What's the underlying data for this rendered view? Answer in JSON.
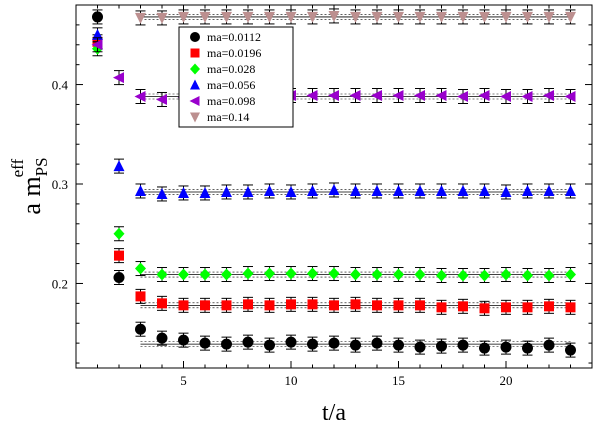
{
  "chart_data": {
    "type": "scatter",
    "title": "",
    "xlabel": "t/a",
    "ylabel": {
      "main": "a m",
      "sub": "PS",
      "sup": "eff"
    },
    "xlim": [
      0,
      24
    ],
    "ylim": [
      0.115,
      0.48
    ],
    "xticks": [
      5,
      10,
      15,
      20
    ],
    "yticks": [
      0.2,
      0.3,
      0.4
    ],
    "grid": false,
    "legend_position": "top-center",
    "series": [
      {
        "name": "ma=0.0112",
        "color": "#000000",
        "marker": "circle",
        "points": [
          [
            1,
            0.468
          ],
          [
            2,
            0.206
          ],
          [
            3,
            0.154
          ],
          [
            4,
            0.145
          ],
          [
            5,
            0.143
          ],
          [
            6,
            0.14
          ],
          [
            7,
            0.139
          ],
          [
            8,
            0.141
          ],
          [
            9,
            0.138
          ],
          [
            10,
            0.141
          ],
          [
            11,
            0.139
          ],
          [
            12,
            0.14
          ],
          [
            13,
            0.138
          ],
          [
            14,
            0.14
          ],
          [
            15,
            0.138
          ],
          [
            16,
            0.136
          ],
          [
            17,
            0.137
          ],
          [
            18,
            0.138
          ],
          [
            19,
            0.135
          ],
          [
            20,
            0.136
          ],
          [
            21,
            0.135
          ],
          [
            22,
            0.138
          ],
          [
            23,
            0.133
          ]
        ],
        "fit_level": 0.139
      },
      {
        "name": "ma=0.0196",
        "color": "#ff0000",
        "marker": "square",
        "points": [
          [
            1,
            0.443
          ],
          [
            2,
            0.228
          ],
          [
            3,
            0.187
          ],
          [
            4,
            0.18
          ],
          [
            5,
            0.178
          ],
          [
            6,
            0.178
          ],
          [
            7,
            0.178
          ],
          [
            8,
            0.179
          ],
          [
            9,
            0.178
          ],
          [
            10,
            0.179
          ],
          [
            11,
            0.179
          ],
          [
            12,
            0.178
          ],
          [
            13,
            0.179
          ],
          [
            14,
            0.178
          ],
          [
            15,
            0.178
          ],
          [
            16,
            0.178
          ],
          [
            17,
            0.176
          ],
          [
            18,
            0.177
          ],
          [
            19,
            0.175
          ],
          [
            20,
            0.176
          ],
          [
            21,
            0.176
          ],
          [
            22,
            0.177
          ],
          [
            23,
            0.176
          ]
        ],
        "fit_level": 0.178
      },
      {
        "name": "ma=0.028",
        "color": "#00ff00",
        "marker": "diamond",
        "points": [
          [
            1,
            0.436
          ],
          [
            2,
            0.25
          ],
          [
            3,
            0.215
          ],
          [
            4,
            0.209
          ],
          [
            5,
            0.209
          ],
          [
            6,
            0.209
          ],
          [
            7,
            0.209
          ],
          [
            8,
            0.21
          ],
          [
            9,
            0.21
          ],
          [
            10,
            0.21
          ],
          [
            11,
            0.21
          ],
          [
            12,
            0.21
          ],
          [
            13,
            0.209
          ],
          [
            14,
            0.209
          ],
          [
            15,
            0.209
          ],
          [
            16,
            0.209
          ],
          [
            17,
            0.208
          ],
          [
            18,
            0.208
          ],
          [
            19,
            0.208
          ],
          [
            20,
            0.209
          ],
          [
            21,
            0.208
          ],
          [
            22,
            0.208
          ],
          [
            23,
            0.209
          ]
        ],
        "fit_level": 0.209
      },
      {
        "name": "ma=0.056",
        "color": "#0000ff",
        "marker": "triangle-up",
        "points": [
          [
            1,
            0.45
          ],
          [
            2,
            0.318
          ],
          [
            3,
            0.293
          ],
          [
            4,
            0.29
          ],
          [
            5,
            0.291
          ],
          [
            6,
            0.291
          ],
          [
            7,
            0.292
          ],
          [
            8,
            0.292
          ],
          [
            9,
            0.293
          ],
          [
            10,
            0.292
          ],
          [
            11,
            0.293
          ],
          [
            12,
            0.294
          ],
          [
            13,
            0.293
          ],
          [
            14,
            0.293
          ],
          [
            15,
            0.293
          ],
          [
            16,
            0.293
          ],
          [
            17,
            0.293
          ],
          [
            18,
            0.293
          ],
          [
            19,
            0.293
          ],
          [
            20,
            0.292
          ],
          [
            21,
            0.293
          ],
          [
            22,
            0.293
          ],
          [
            23,
            0.293
          ]
        ],
        "fit_level": 0.292
      },
      {
        "name": "ma=0.098",
        "color": "#9900cc",
        "marker": "triangle-left",
        "points": [
          [
            1,
            0.44
          ],
          [
            2,
            0.407
          ],
          [
            3,
            0.388
          ],
          [
            4,
            0.385
          ],
          [
            5,
            0.387
          ],
          [
            6,
            0.389
          ],
          [
            7,
            0.389
          ],
          [
            8,
            0.389
          ],
          [
            9,
            0.389
          ],
          [
            10,
            0.389
          ],
          [
            11,
            0.389
          ],
          [
            12,
            0.389
          ],
          [
            13,
            0.389
          ],
          [
            14,
            0.389
          ],
          [
            15,
            0.389
          ],
          [
            16,
            0.389
          ],
          [
            17,
            0.389
          ],
          [
            18,
            0.388
          ],
          [
            19,
            0.389
          ],
          [
            20,
            0.388
          ],
          [
            21,
            0.388
          ],
          [
            22,
            0.389
          ],
          [
            23,
            0.388
          ]
        ],
        "fit_level": 0.388
      },
      {
        "name": "ma=0.14",
        "color": "#bc8f8f",
        "marker": "triangle-down",
        "points": [
          [
            3,
            0.467
          ],
          [
            4,
            0.467
          ],
          [
            5,
            0.468
          ],
          [
            6,
            0.468
          ],
          [
            7,
            0.468
          ],
          [
            8,
            0.468
          ],
          [
            9,
            0.468
          ],
          [
            10,
            0.468
          ],
          [
            11,
            0.468
          ],
          [
            12,
            0.469
          ],
          [
            13,
            0.468
          ],
          [
            14,
            0.468
          ],
          [
            15,
            0.468
          ],
          [
            16,
            0.468
          ],
          [
            17,
            0.468
          ],
          [
            18,
            0.468
          ],
          [
            19,
            0.468
          ],
          [
            20,
            0.468
          ],
          [
            21,
            0.468
          ],
          [
            22,
            0.468
          ],
          [
            23,
            0.468
          ]
        ],
        "fit_level": 0.468
      }
    ]
  }
}
